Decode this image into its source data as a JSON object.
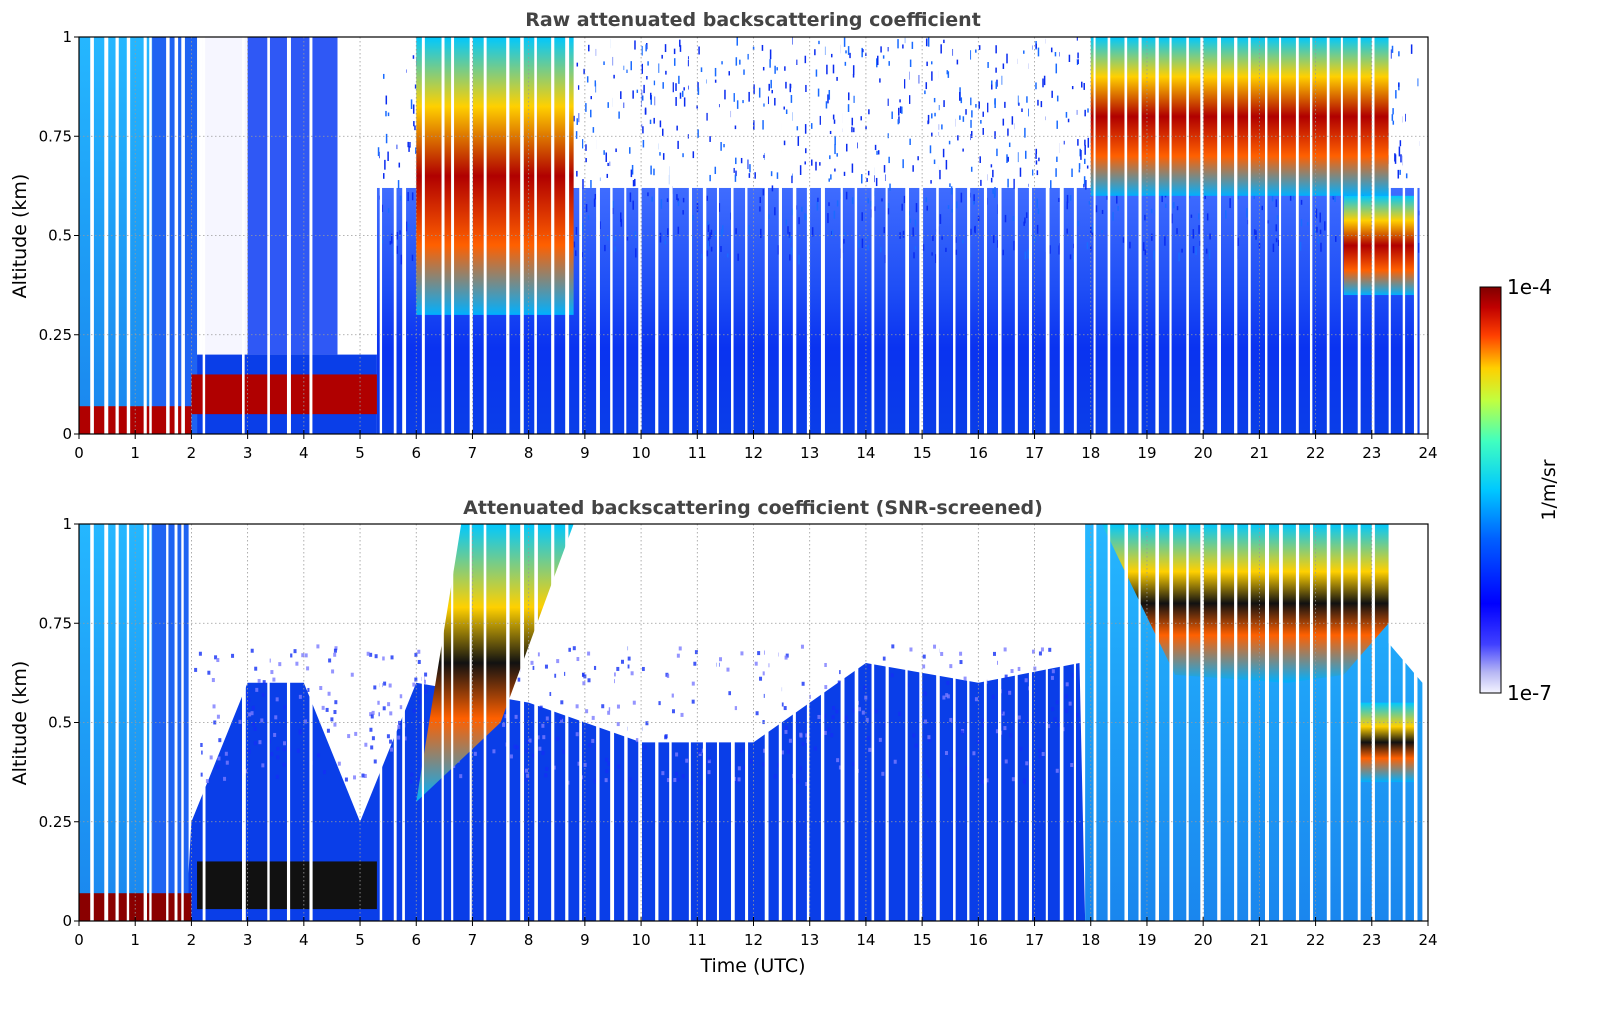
{
  "chart_data": [
    {
      "type": "heatmap",
      "title": "Raw attenuated backscattering coefficient",
      "ylabel": "Altitude (km)",
      "xlabel": "",
      "xlim": [
        0,
        24
      ],
      "ylim": [
        0,
        1
      ],
      "x_ticks": [
        "0",
        "1",
        "2",
        "3",
        "4",
        "5",
        "6",
        "7",
        "8",
        "9",
        "10",
        "11",
        "12",
        "13",
        "14",
        "15",
        "16",
        "17",
        "18",
        "19",
        "20",
        "21",
        "22",
        "23",
        "24"
      ],
      "y_ticks": [
        "0",
        "0.25",
        "0.5",
        "0.75",
        "1"
      ],
      "grid": true,
      "z_scale": "log",
      "z_range": [
        1e-07,
        0.0001
      ],
      "layers": [
        {
          "feature": "surface layer",
          "x_range": [
            0,
            2
          ],
          "altitude_range": [
            0,
            0.07
          ]
        },
        {
          "feature": "residual layer",
          "x_range": [
            2,
            5.3
          ],
          "altitude_range": [
            0.05,
            0.15
          ]
        },
        {
          "feature": "cloud",
          "x_range": [
            6,
            8.8
          ],
          "altitude_range": [
            0.3,
            1.0
          ]
        },
        {
          "feature": "cloud",
          "x_range": [
            18,
            23.3
          ],
          "altitude_range": [
            0.6,
            1.0
          ]
        },
        {
          "feature": "cloud",
          "x_range": [
            22.5,
            23.8
          ],
          "altitude_range": [
            0.35,
            0.6
          ]
        }
      ]
    },
    {
      "type": "heatmap",
      "title": "Attenuated backscattering coefficient (SNR-screened)",
      "ylabel": "Altitude (km)",
      "xlabel": "Time (UTC)",
      "xlim": [
        0,
        24
      ],
      "ylim": [
        0,
        1
      ],
      "x_ticks": [
        "0",
        "1",
        "2",
        "3",
        "4",
        "5",
        "6",
        "7",
        "8",
        "9",
        "10",
        "11",
        "12",
        "13",
        "14",
        "15",
        "16",
        "17",
        "18",
        "19",
        "20",
        "21",
        "22",
        "23",
        "24"
      ],
      "y_ticks": [
        "0",
        "0.25",
        "0.5",
        "0.75",
        "1"
      ],
      "grid": true,
      "z_scale": "log",
      "z_range": [
        1e-07,
        0.0001
      ],
      "screened_top": [
        {
          "x": 2,
          "altitude": 0.25
        },
        {
          "x": 3,
          "altitude": 0.6
        },
        {
          "x": 4,
          "altitude": 0.6
        },
        {
          "x": 5,
          "altitude": 0.25
        },
        {
          "x": 6,
          "altitude": 0.6
        },
        {
          "x": 8,
          "altitude": 0.55
        },
        {
          "x": 10,
          "altitude": 0.45
        },
        {
          "x": 12,
          "altitude": 0.45
        },
        {
          "x": 14,
          "altitude": 0.65
        },
        {
          "x": 16,
          "altitude": 0.6
        },
        {
          "x": 17.8,
          "altitude": 0.65
        }
      ]
    }
  ],
  "colorbar": {
    "label": "1/m/sr",
    "max_label": "1e-4",
    "min_label": "1e-7",
    "colormap": "jet"
  }
}
